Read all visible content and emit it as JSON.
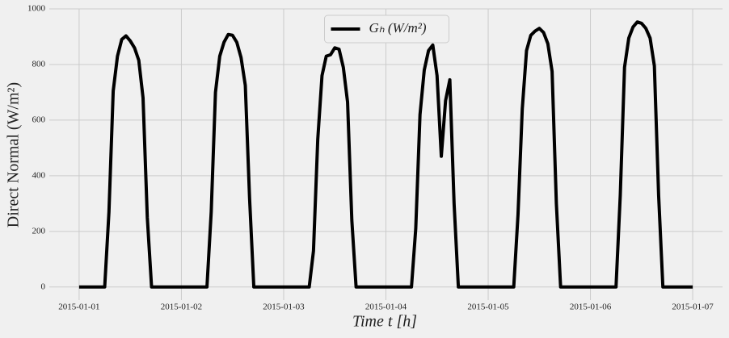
{
  "chart_data": {
    "type": "line",
    "x_label": "Time t [h]",
    "y_label": "Direct Normal (W/m²)",
    "x": [
      0,
      1,
      2,
      3,
      4,
      5,
      6,
      7,
      8,
      9,
      10,
      11,
      12,
      13,
      14,
      15,
      16,
      17,
      18,
      19,
      20,
      21,
      22,
      23,
      24,
      25,
      26,
      27,
      28,
      29,
      30,
      31,
      32,
      33,
      34,
      35,
      36,
      37,
      38,
      39,
      40,
      41,
      42,
      43,
      44,
      45,
      46,
      47,
      48,
      49,
      50,
      51,
      52,
      53,
      54,
      55,
      56,
      57,
      58,
      59,
      60,
      61,
      62,
      63,
      64,
      65,
      66,
      67,
      68,
      69,
      70,
      71,
      72,
      73,
      74,
      75,
      76,
      77,
      78,
      79,
      80,
      81,
      82,
      83,
      84,
      85,
      86,
      87,
      88,
      89,
      90,
      91,
      92,
      93,
      94,
      95,
      96,
      97,
      98,
      99,
      100,
      101,
      102,
      103,
      104,
      105,
      106,
      107,
      108,
      109,
      110,
      111,
      112,
      113,
      114,
      115,
      116,
      117,
      118,
      119,
      120,
      121,
      122,
      123,
      124,
      125,
      126,
      127,
      128,
      129,
      130,
      131,
      132,
      133,
      134,
      135,
      136,
      137,
      138,
      139,
      140,
      141,
      142,
      143,
      144
    ],
    "series": [
      {
        "name": "Gₕ (W/m²)",
        "color": "#000000",
        "values": [
          0,
          0,
          0,
          0,
          0,
          0,
          0,
          270,
          705,
          830,
          890,
          903,
          885,
          860,
          815,
          680,
          250,
          0,
          0,
          0,
          0,
          0,
          0,
          0,
          0,
          0,
          0,
          0,
          0,
          0,
          0,
          270,
          700,
          830,
          880,
          908,
          905,
          880,
          825,
          725,
          320,
          0,
          0,
          0,
          0,
          0,
          0,
          0,
          0,
          0,
          0,
          0,
          0,
          0,
          0,
          130,
          530,
          760,
          830,
          835,
          860,
          855,
          790,
          665,
          240,
          0,
          0,
          0,
          0,
          0,
          0,
          0,
          0,
          0,
          0,
          0,
          0,
          0,
          0,
          210,
          620,
          780,
          850,
          870,
          760,
          470,
          670,
          745,
          300,
          0,
          0,
          0,
          0,
          0,
          0,
          0,
          0,
          0,
          0,
          0,
          0,
          0,
          0,
          260,
          640,
          850,
          905,
          920,
          930,
          915,
          875,
          775,
          300,
          0,
          0,
          0,
          0,
          0,
          0,
          0,
          0,
          0,
          0,
          0,
          0,
          0,
          0,
          330,
          790,
          895,
          935,
          953,
          948,
          930,
          895,
          795,
          330,
          0,
          0,
          0,
          0,
          0,
          0,
          0,
          0
        ]
      }
    ],
    "xlim": [
      -7,
      151
    ],
    "ylim": [
      -47,
      1000
    ],
    "xticks": [
      {
        "value": 0,
        "label": "2015-01-01"
      },
      {
        "value": 24,
        "label": "2015-01-02"
      },
      {
        "value": 48,
        "label": "2015-01-03"
      },
      {
        "value": 72,
        "label": "2015-01-04"
      },
      {
        "value": 96,
        "label": "2015-01-05"
      },
      {
        "value": 120,
        "label": "2015-01-06"
      },
      {
        "value": 144,
        "label": "2015-01-07"
      }
    ],
    "yticks": [
      0,
      200,
      400,
      600,
      800,
      1000
    ],
    "grid": true,
    "legend": "upper center"
  }
}
